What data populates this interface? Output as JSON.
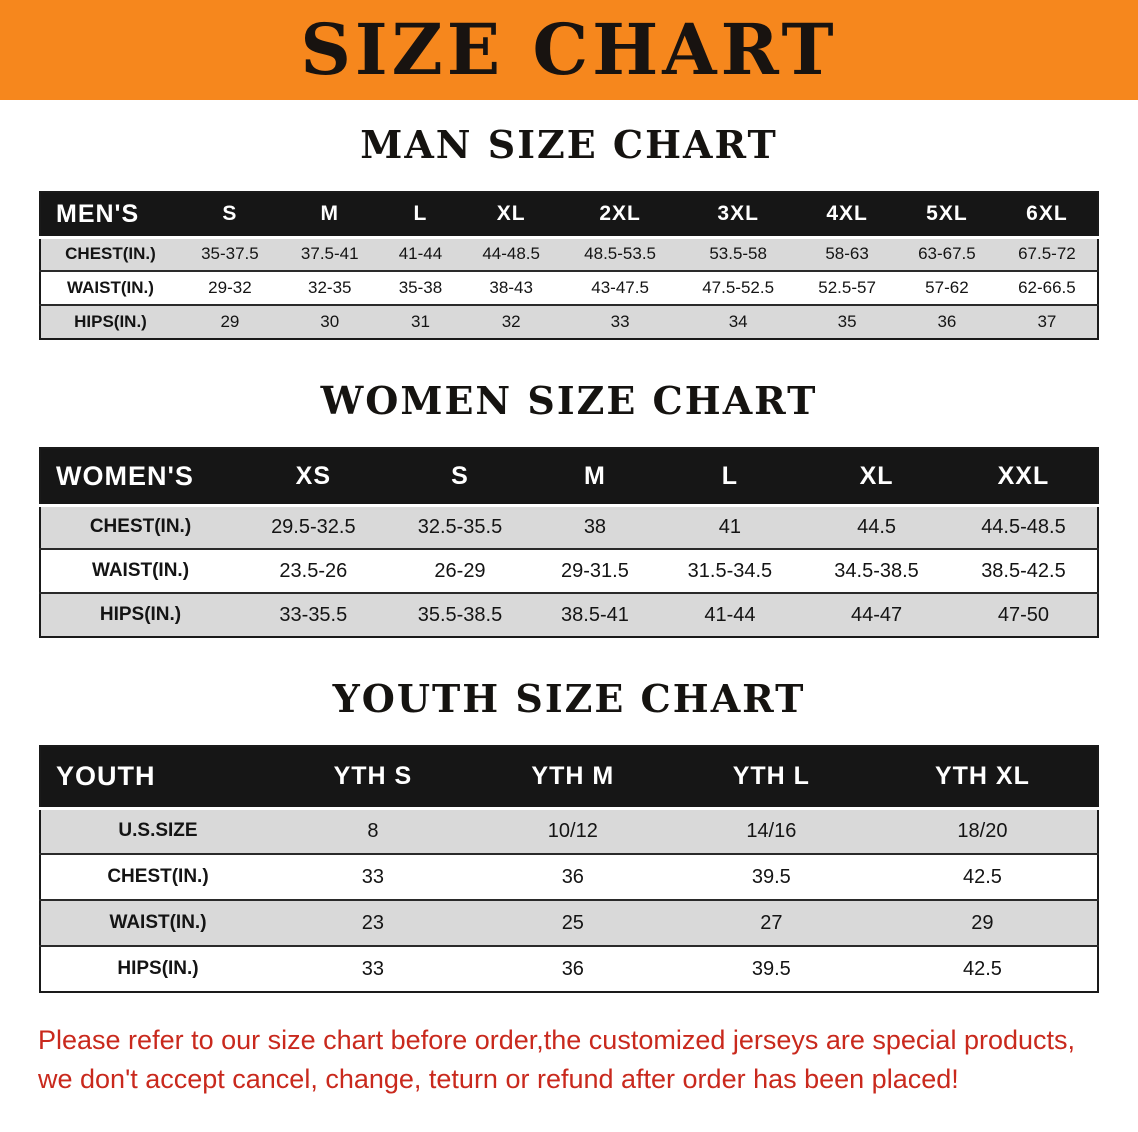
{
  "banner": {
    "title": "SIZE CHART",
    "background_color": "#f6871d",
    "text_color": "#181310"
  },
  "sections": [
    {
      "heading": "MAN SIZE CHART",
      "table": {
        "header": [
          "MEN'S",
          "S",
          "M",
          "L",
          "XL",
          "2XL",
          "3XL",
          "4XL",
          "5XL",
          "6XL"
        ],
        "rows": [
          {
            "label": "CHEST(IN.)",
            "values": [
              "35-37.5",
              "37.5-41",
              "41-44",
              "44-48.5",
              "48.5-53.5",
              "53.5-58",
              "58-63",
              "63-67.5",
              "67.5-72"
            ]
          },
          {
            "label": "WAIST(IN.)",
            "values": [
              "29-32",
              "32-35",
              "35-38",
              "38-43",
              "43-47.5",
              "47.5-52.5",
              "52.5-57",
              "57-62",
              "62-66.5"
            ]
          },
          {
            "label": "HIPS(IN.)",
            "values": [
              "29",
              "30",
              "31",
              "32",
              "33",
              "34",
              "35",
              "36",
              "37"
            ]
          }
        ]
      }
    },
    {
      "heading": "WOMEN SIZE CHART",
      "table": {
        "header": [
          "WOMEN'S",
          "XS",
          "S",
          "M",
          "L",
          "XL",
          "XXL"
        ],
        "rows": [
          {
            "label": "CHEST(IN.)",
            "values": [
              "29.5-32.5",
              "32.5-35.5",
              "38",
              "41",
              "44.5",
              "44.5-48.5"
            ]
          },
          {
            "label": "WAIST(IN.)",
            "values": [
              "23.5-26",
              "26-29",
              "29-31.5",
              "31.5-34.5",
              "34.5-38.5",
              "38.5-42.5"
            ]
          },
          {
            "label": "HIPS(IN.)",
            "values": [
              "33-35.5",
              "35.5-38.5",
              "38.5-41",
              "41-44",
              "44-47",
              "47-50"
            ]
          }
        ]
      }
    },
    {
      "heading": "YOUTH SIZE CHART",
      "table": {
        "header": [
          "YOUTH",
          "YTH S",
          "YTH M",
          "YTH L",
          "YTH XL"
        ],
        "rows": [
          {
            "label": "U.S.SIZE",
            "values": [
              "8",
              "10/12",
              "14/16",
              "18/20"
            ]
          },
          {
            "label": "CHEST(IN.)",
            "values": [
              "33",
              "36",
              "39.5",
              "42.5"
            ]
          },
          {
            "label": "WAIST(IN.)",
            "values": [
              "23",
              "25",
              "27",
              "29"
            ]
          },
          {
            "label": "HIPS(IN.)",
            "values": [
              "33",
              "36",
              "39.5",
              "42.5"
            ]
          }
        ]
      }
    }
  ],
  "notice": {
    "line1": "Please refer to our size chart before order,the customized jerseys are special products,",
    "line2": "we don't accept cancel, change, teturn or refund after order has been placed!",
    "text_color": "#c9291d"
  },
  "colors": {
    "banner_orange": "#f6871d",
    "table_header_black": "#161616",
    "row_gray": "#d9d9d9",
    "row_white": "#ffffff"
  }
}
